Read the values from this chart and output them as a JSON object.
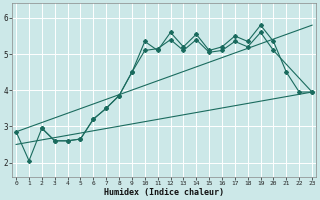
{
  "xlabel": "Humidex (Indice chaleur)",
  "bg_color": "#cce8e8",
  "grid_color": "#ffffff",
  "line_color": "#1a6b5e",
  "x_ticks": [
    0,
    1,
    2,
    3,
    4,
    5,
    6,
    7,
    8,
    9,
    10,
    11,
    12,
    13,
    14,
    15,
    16,
    17,
    18,
    19,
    20,
    21,
    22,
    23
  ],
  "y_ticks": [
    2,
    3,
    4,
    5,
    6
  ],
  "xlim": [
    -0.3,
    23.3
  ],
  "ylim": [
    1.6,
    6.4
  ],
  "line1_x": [
    0,
    1,
    2,
    3,
    4,
    5,
    6,
    7,
    8,
    9,
    10,
    11,
    12,
    13,
    14,
    15,
    16,
    17,
    18,
    19,
    20,
    21,
    22,
    23
  ],
  "line1_y": [
    2.85,
    2.05,
    2.95,
    2.6,
    2.6,
    2.65,
    3.2,
    3.5,
    3.85,
    4.5,
    5.35,
    5.1,
    5.6,
    5.2,
    5.55,
    5.1,
    5.2,
    5.5,
    5.35,
    5.8,
    5.35,
    4.5,
    3.95,
    3.95
  ],
  "line2_x": [
    2,
    3,
    4,
    5,
    6,
    7,
    8,
    9,
    10,
    11,
    12,
    13,
    14,
    15,
    16,
    17,
    18,
    19,
    20,
    23
  ],
  "line2_y": [
    2.95,
    2.6,
    2.6,
    2.65,
    3.2,
    3.5,
    3.85,
    4.5,
    5.1,
    5.15,
    5.4,
    5.1,
    5.4,
    5.05,
    5.1,
    5.35,
    5.2,
    5.6,
    5.1,
    3.95
  ],
  "line3_x": [
    0,
    23
  ],
  "line3_y": [
    2.5,
    3.95
  ],
  "line4_x": [
    0,
    23
  ],
  "line4_y": [
    2.85,
    5.8
  ]
}
